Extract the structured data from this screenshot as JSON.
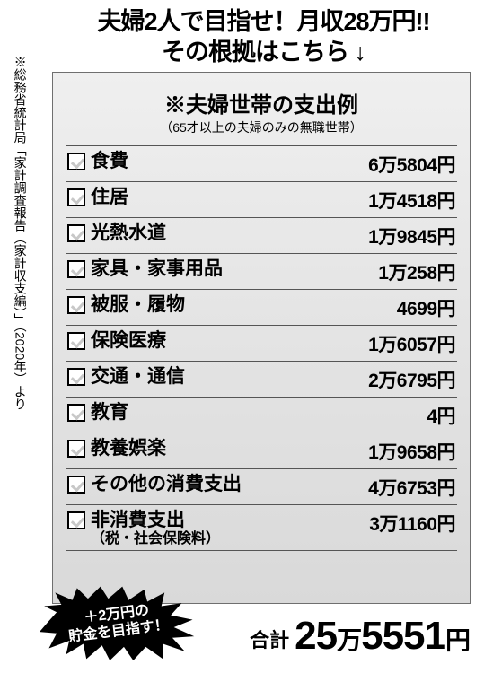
{
  "headline": {
    "line1": "夫婦2人で目指せ！月収28万円!!",
    "line2": "その根拠はこちら ↓"
  },
  "source_note": "※総務省統計局「家計調査報告（家計収支編）」（2020年）より",
  "section": {
    "title": "※夫婦世帯の支出例",
    "subtitle": "（65才以上の夫婦のみの無職世帯）"
  },
  "rows": [
    {
      "category": "食費",
      "amount": "6万5804円"
    },
    {
      "category": "住居",
      "amount": "1万4518円"
    },
    {
      "category": "光熱水道",
      "amount": "1万9845円"
    },
    {
      "category": "家具・家事用品",
      "amount": "1万258円"
    },
    {
      "category": "被服・履物",
      "amount": "4699円"
    },
    {
      "category": "保険医療",
      "amount": "1万6057円"
    },
    {
      "category": "交通・通信",
      "amount": "2万6795円"
    },
    {
      "category": "教育",
      "amount": "4円"
    },
    {
      "category": "教養娯楽",
      "amount": "1万9658円"
    },
    {
      "category": "その他の消費支出",
      "amount": "4万6753円"
    },
    {
      "category": "非消費支出",
      "sub": "（税・社会保険料）",
      "amount": "3万1160円"
    }
  ],
  "burst": {
    "line1": "＋2万円の",
    "line2": "貯金を目指す！"
  },
  "total": {
    "label": "合計",
    "n1": "25",
    "u1": "万",
    "n2": "5551",
    "u2": "円"
  },
  "style": {
    "bg": "#ffffff",
    "receipt_bg_top": "#efefef",
    "receipt_bg_bot": "#d9d9d9",
    "border": "#555555",
    "burst_fill": "#000000",
    "burst_text": "#ffffff",
    "check_tick": "#c8c8c8"
  }
}
